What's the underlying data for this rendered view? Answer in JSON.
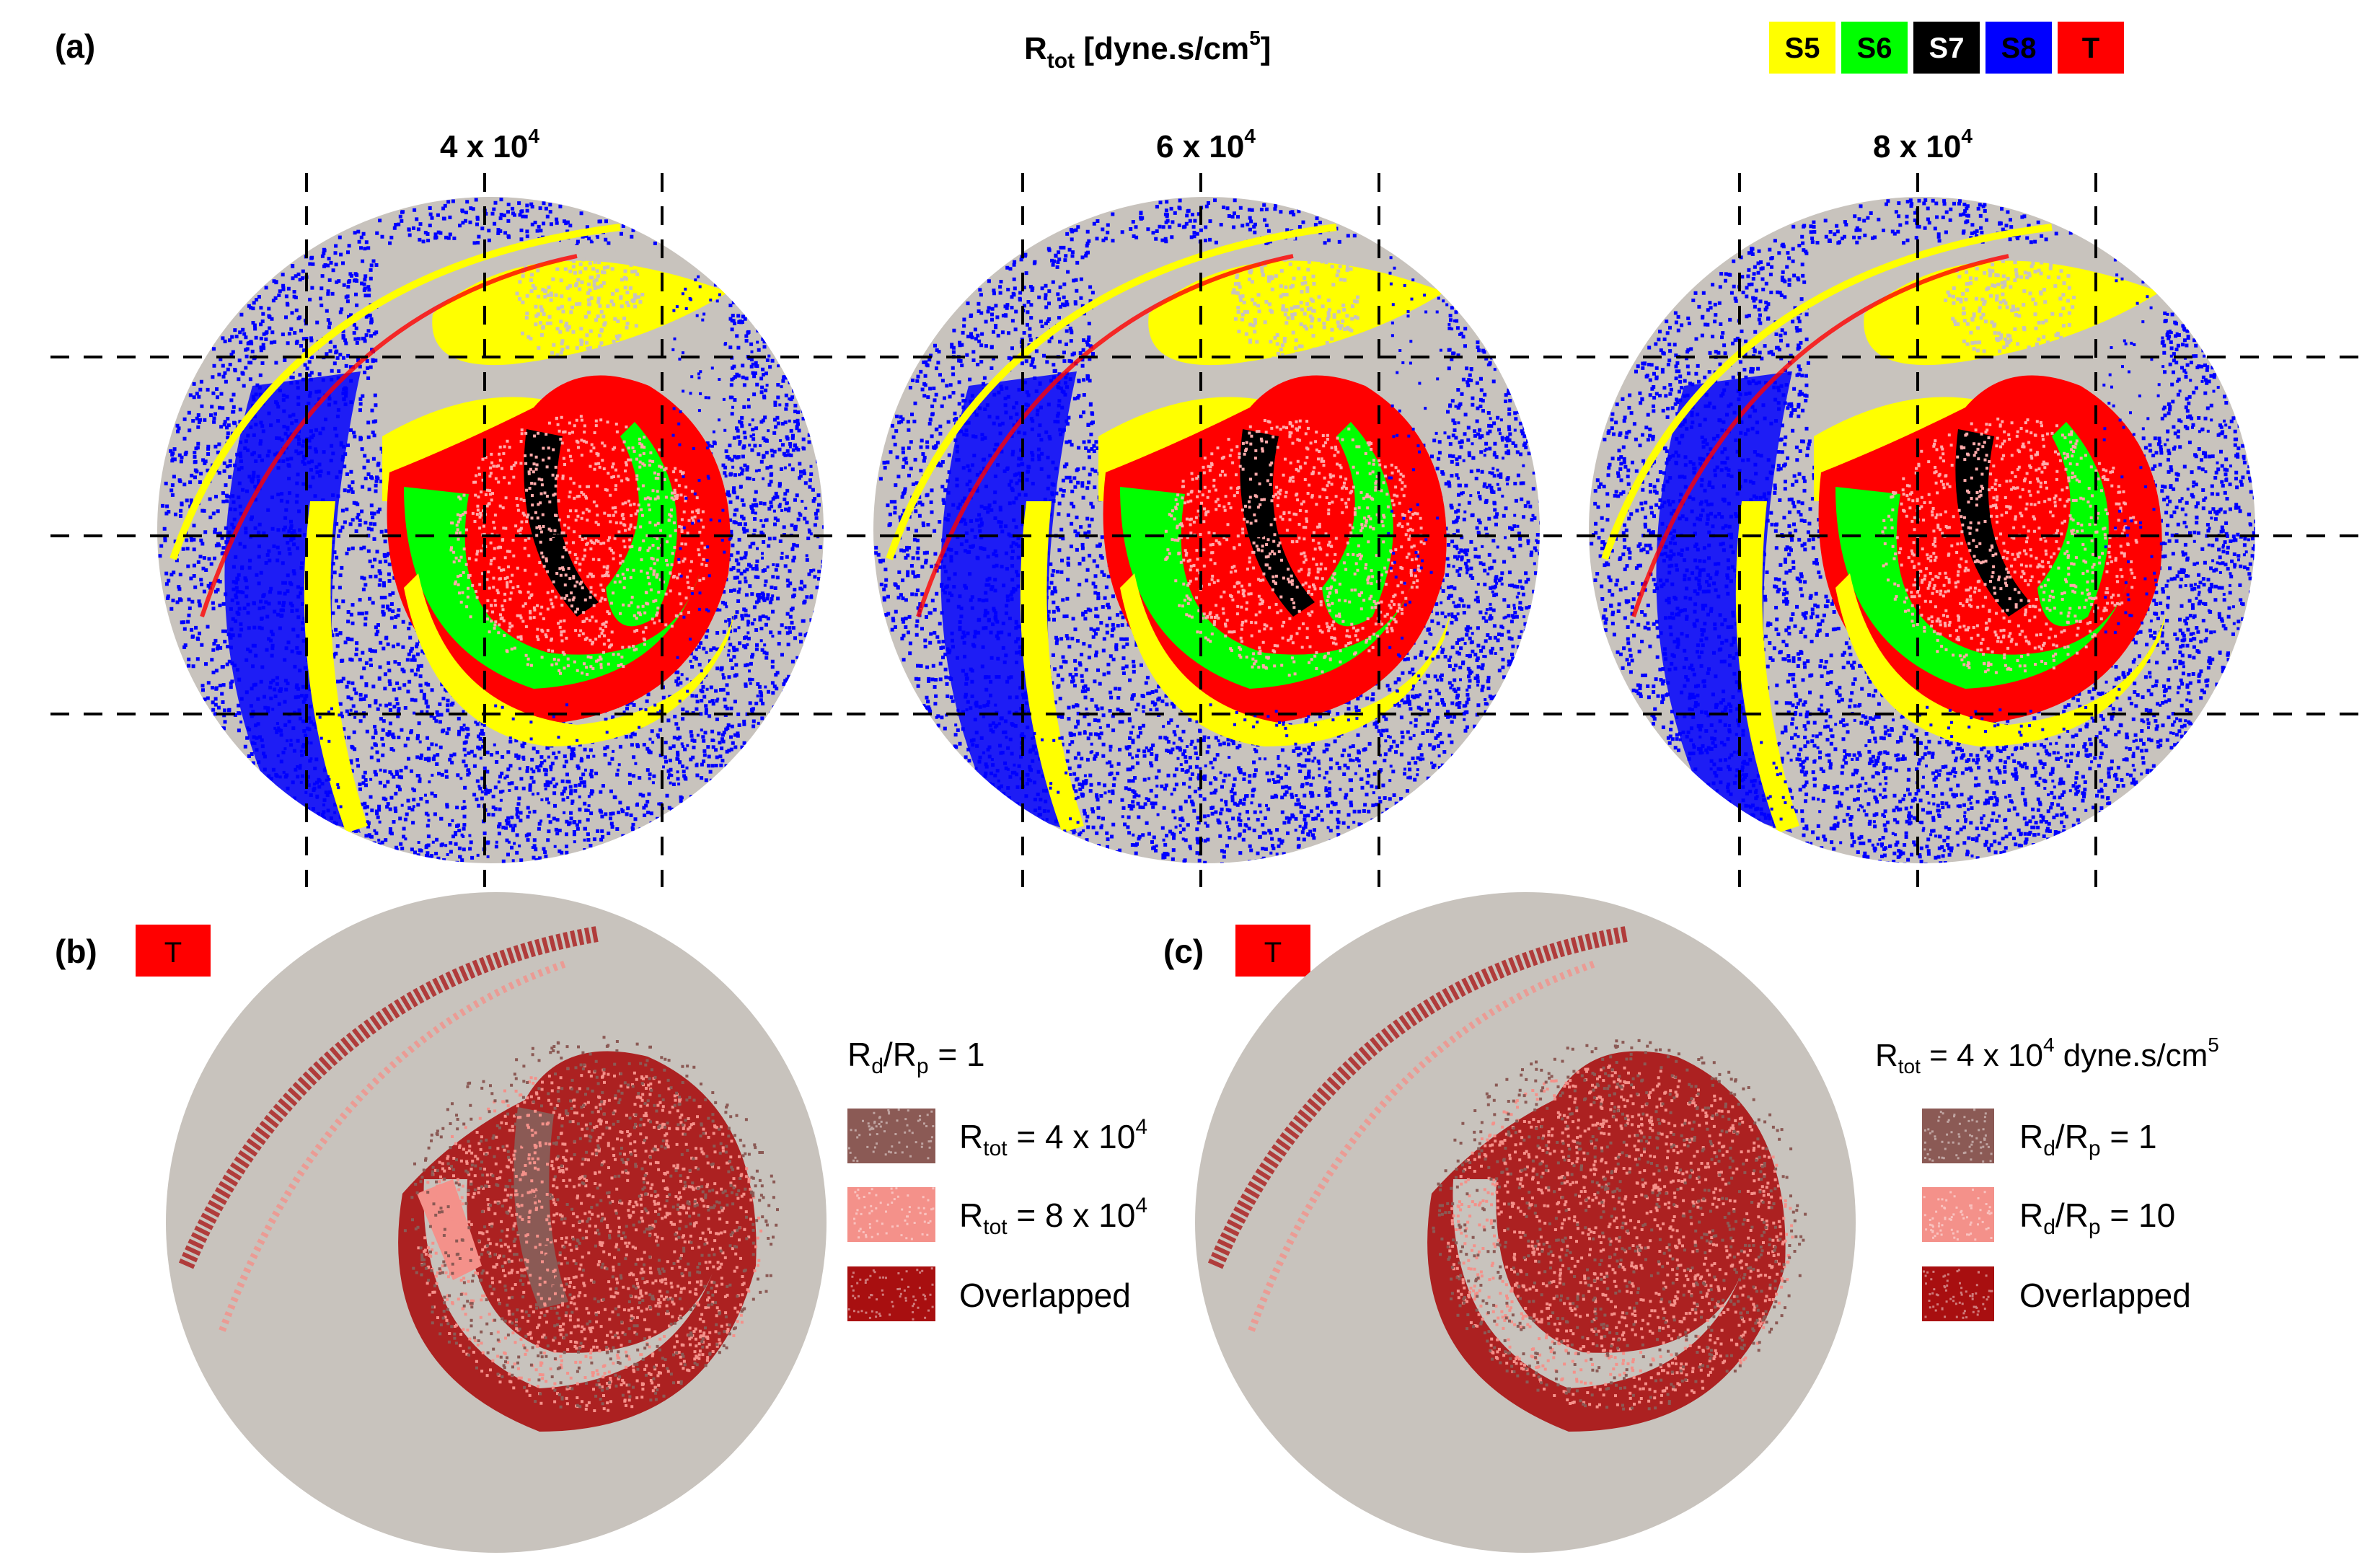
{
  "panel_a": {
    "label": "(a)",
    "title_main": "R",
    "title_sub": "tot",
    "title_rest": " [dyne.s/cm",
    "title_sup": "5",
    "title_end": "]",
    "legend": [
      {
        "label": "S5",
        "color": "#ffff00",
        "text_color": "#000000"
      },
      {
        "label": "S6",
        "color": "#00ff00",
        "text_color": "#000000"
      },
      {
        "label": "S7",
        "color": "#000000",
        "text_color": "#ffffff"
      },
      {
        "label": "S8",
        "color": "#0000ff",
        "text_color": "#000000"
      },
      {
        "label": "T",
        "color": "#ff0000",
        "text_color": "#000000"
      }
    ],
    "columns": [
      {
        "base": "4 x 10",
        "exp": "4"
      },
      {
        "base": "6 x 10",
        "exp": "4"
      },
      {
        "base": "8 x 10",
        "exp": "4"
      }
    ]
  },
  "panel_b": {
    "label": "(b)",
    "badge": "T",
    "header": {
      "a": "R",
      "a_sub": "d",
      "b": "/R",
      "b_sub": "p",
      "c": " = 1"
    },
    "items": [
      {
        "pre": "R",
        "sub": "tot",
        "post": " = 4 x 10",
        "sup": "4",
        "swatch": "#8b5a55"
      },
      {
        "pre": "R",
        "sub": "tot",
        "post": " = 8 x 10",
        "sup": "4",
        "swatch": "#f4918a"
      },
      {
        "pre": "Overlapped",
        "sub": "",
        "post": "",
        "sup": "",
        "swatch": "#a80f10"
      }
    ]
  },
  "panel_c": {
    "label": "(c)",
    "badge": "T",
    "header": {
      "a": "R",
      "a_sub": "tot",
      "b": " = 4 x 10",
      "b_sup": "4",
      "c": " dyne.s/cm",
      "c_sup": "5"
    },
    "items": [
      {
        "pre": "R",
        "sub": "d",
        "post": "/R",
        "sub2": "p",
        "tail": " = 1",
        "swatch": "#8b5a55"
      },
      {
        "pre": "R",
        "sub": "d",
        "post": "/R",
        "sub2": "p",
        "tail": " = 10",
        "swatch": "#f4918a"
      },
      {
        "pre": "Overlapped",
        "sub": "",
        "post": "",
        "sub2": "",
        "tail": "",
        "swatch": "#a80f10"
      }
    ]
  },
  "colors": {
    "disc": "#c8c3bd",
    "s5": "#ffff00",
    "s6": "#00ff00",
    "s7": "#000000",
    "s8": "#0000ff",
    "t": "#ff0000",
    "tot4": "#8b5a55",
    "tot8": "#f4918a",
    "overlap": "#a80f10"
  }
}
